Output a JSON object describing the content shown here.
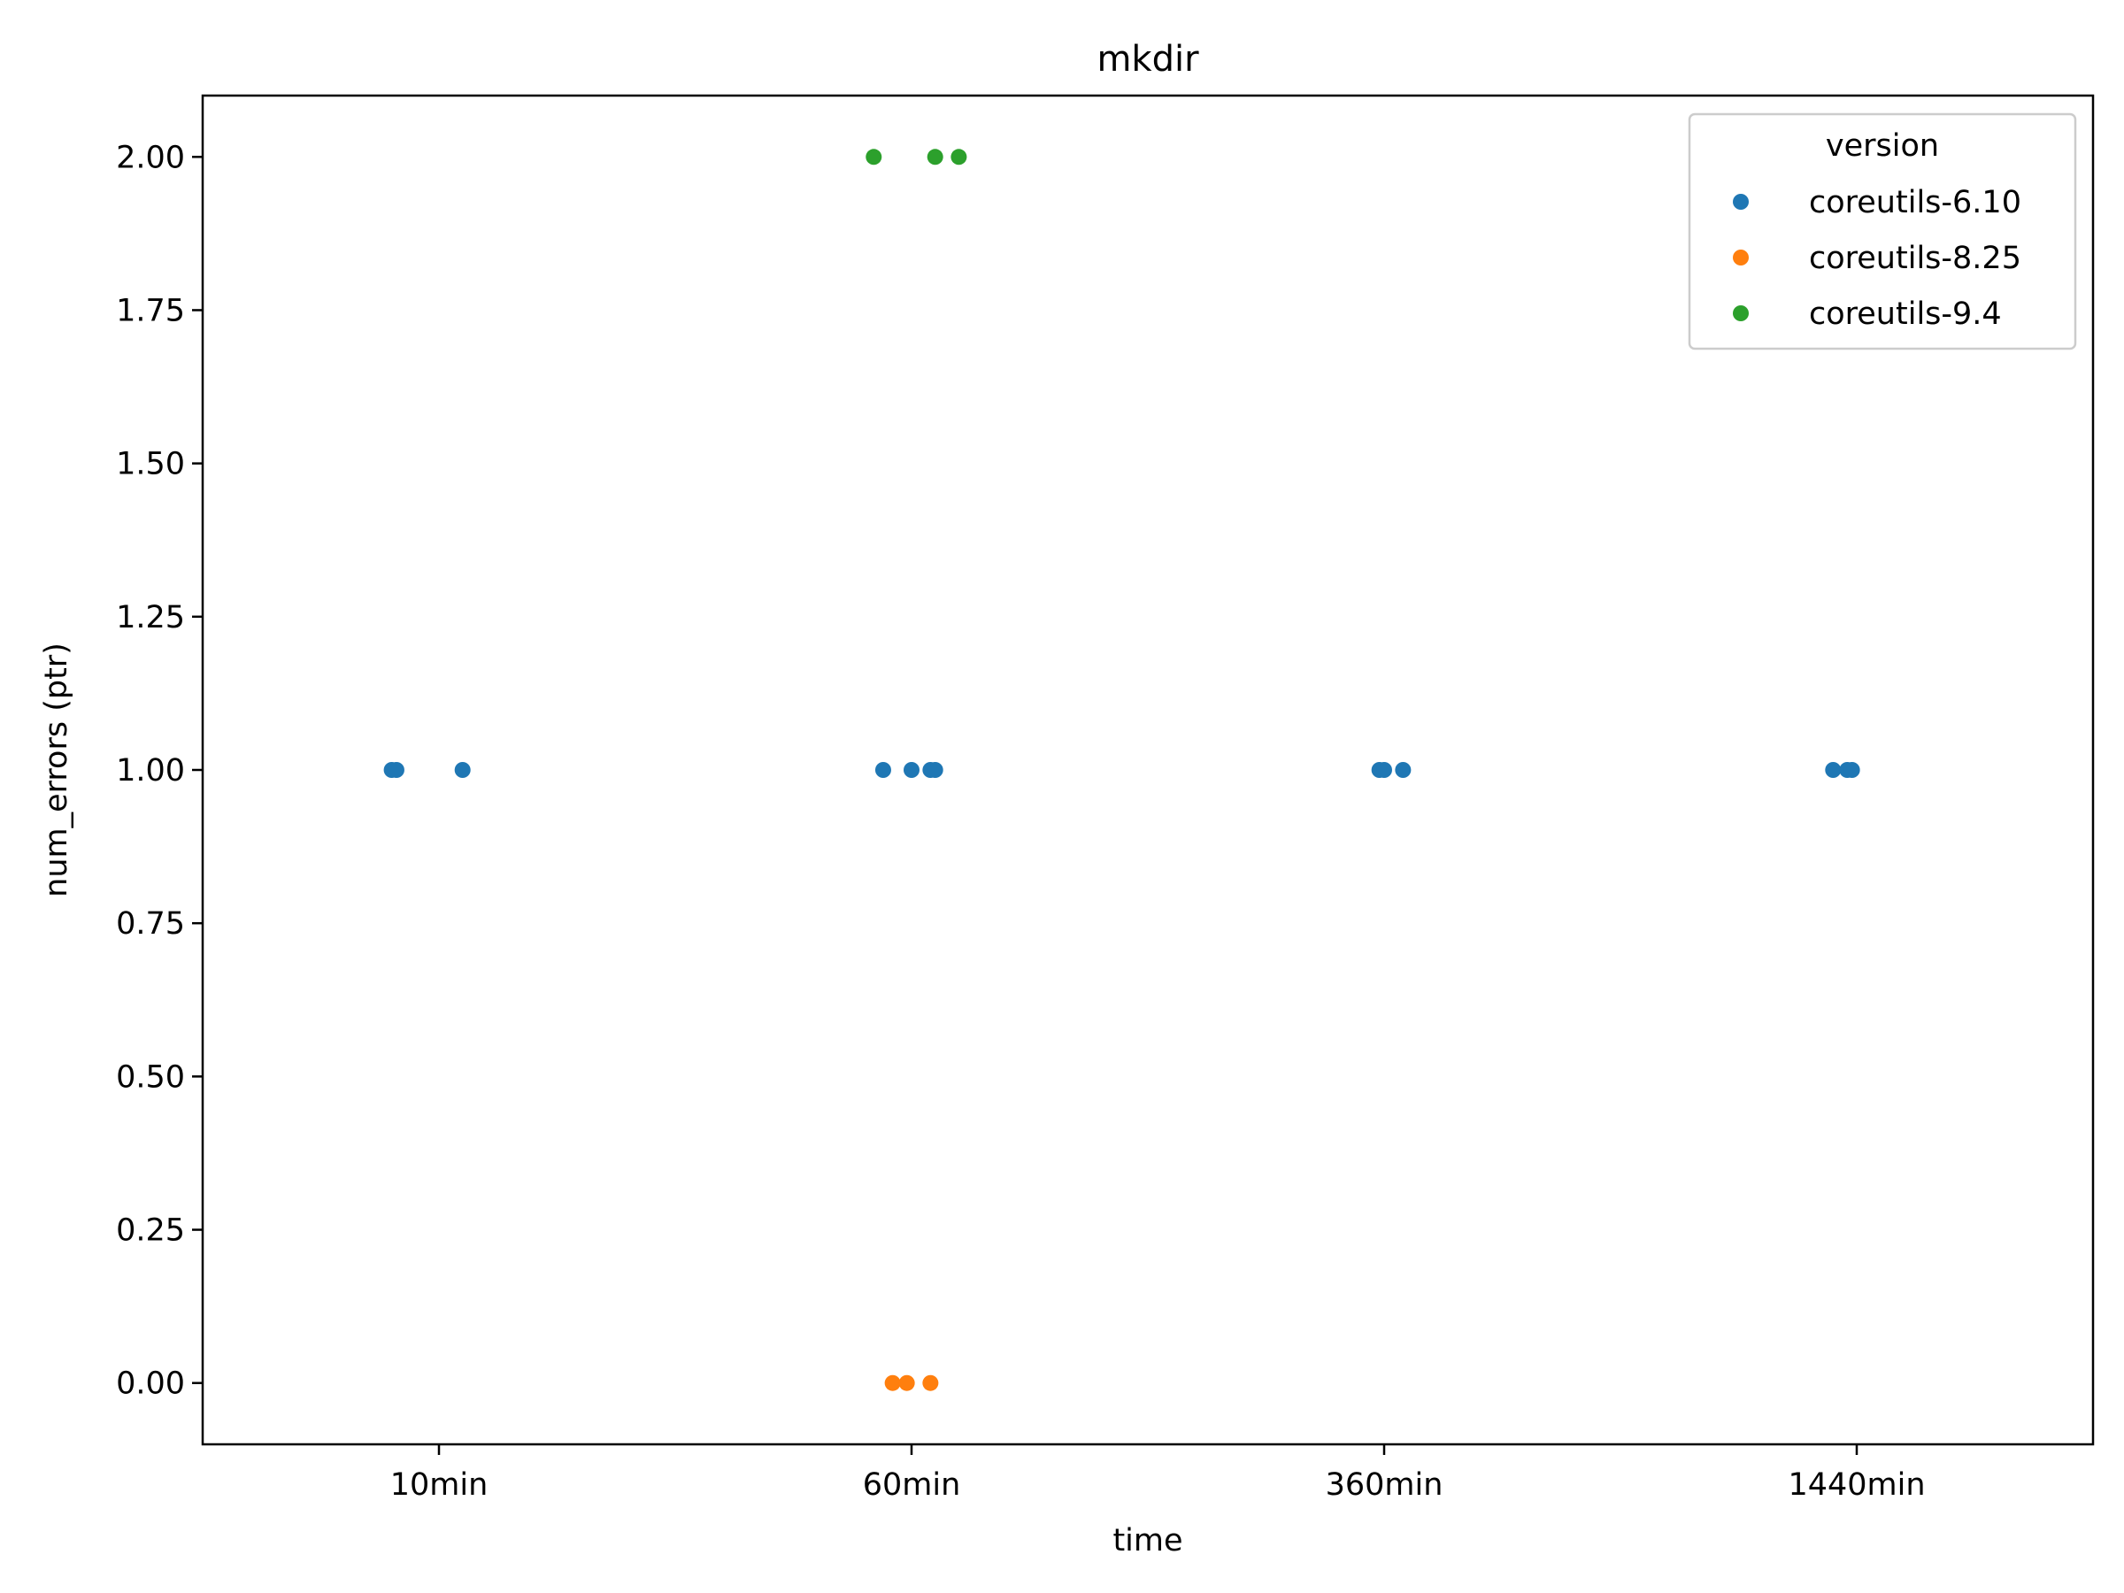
{
  "chart_data": {
    "type": "scatter",
    "title": "mkdir",
    "xlabel": "time",
    "ylabel": "num_errors (ptr)",
    "categories": [
      "10min",
      "60min",
      "360min",
      "1440min"
    ],
    "ylim": [
      -0.1,
      2.1
    ],
    "yticks": [
      "0.00",
      "0.25",
      "0.50",
      "0.75",
      "1.00",
      "1.25",
      "1.50",
      "1.75",
      "2.00"
    ],
    "grid": false,
    "legend": {
      "title": "version",
      "placement": "top-right"
    },
    "series": [
      {
        "name": "coreutils-6.10",
        "color": "#1f77b4",
        "points": [
          {
            "category": "10min",
            "jitter": -0.1,
            "y": 1
          },
          {
            "category": "10min",
            "jitter": -0.09,
            "y": 1
          },
          {
            "category": "10min",
            "jitter": 0.05,
            "y": 1
          },
          {
            "category": "60min",
            "jitter": -0.06,
            "y": 1
          },
          {
            "category": "60min",
            "jitter": 0.0,
            "y": 1
          },
          {
            "category": "60min",
            "jitter": 0.04,
            "y": 1
          },
          {
            "category": "60min",
            "jitter": 0.05,
            "y": 1
          },
          {
            "category": "360min",
            "jitter": -0.01,
            "y": 1
          },
          {
            "category": "360min",
            "jitter": 0.0,
            "y": 1
          },
          {
            "category": "360min",
            "jitter": 0.04,
            "y": 1
          },
          {
            "category": "1440min",
            "jitter": -0.05,
            "y": 1
          },
          {
            "category": "1440min",
            "jitter": -0.02,
            "y": 1
          },
          {
            "category": "1440min",
            "jitter": -0.01,
            "y": 1
          }
        ]
      },
      {
        "name": "coreutils-8.25",
        "color": "#ff7f0e",
        "points": [
          {
            "category": "60min",
            "jitter": -0.04,
            "y": 0
          },
          {
            "category": "60min",
            "jitter": -0.01,
            "y": 0
          },
          {
            "category": "60min",
            "jitter": 0.04,
            "y": 0
          }
        ]
      },
      {
        "name": "coreutils-9.4",
        "color": "#2ca02c",
        "points": [
          {
            "category": "60min",
            "jitter": -0.08,
            "y": 2
          },
          {
            "category": "60min",
            "jitter": 0.05,
            "y": 2
          },
          {
            "category": "60min",
            "jitter": 0.1,
            "y": 2
          }
        ]
      }
    ]
  }
}
